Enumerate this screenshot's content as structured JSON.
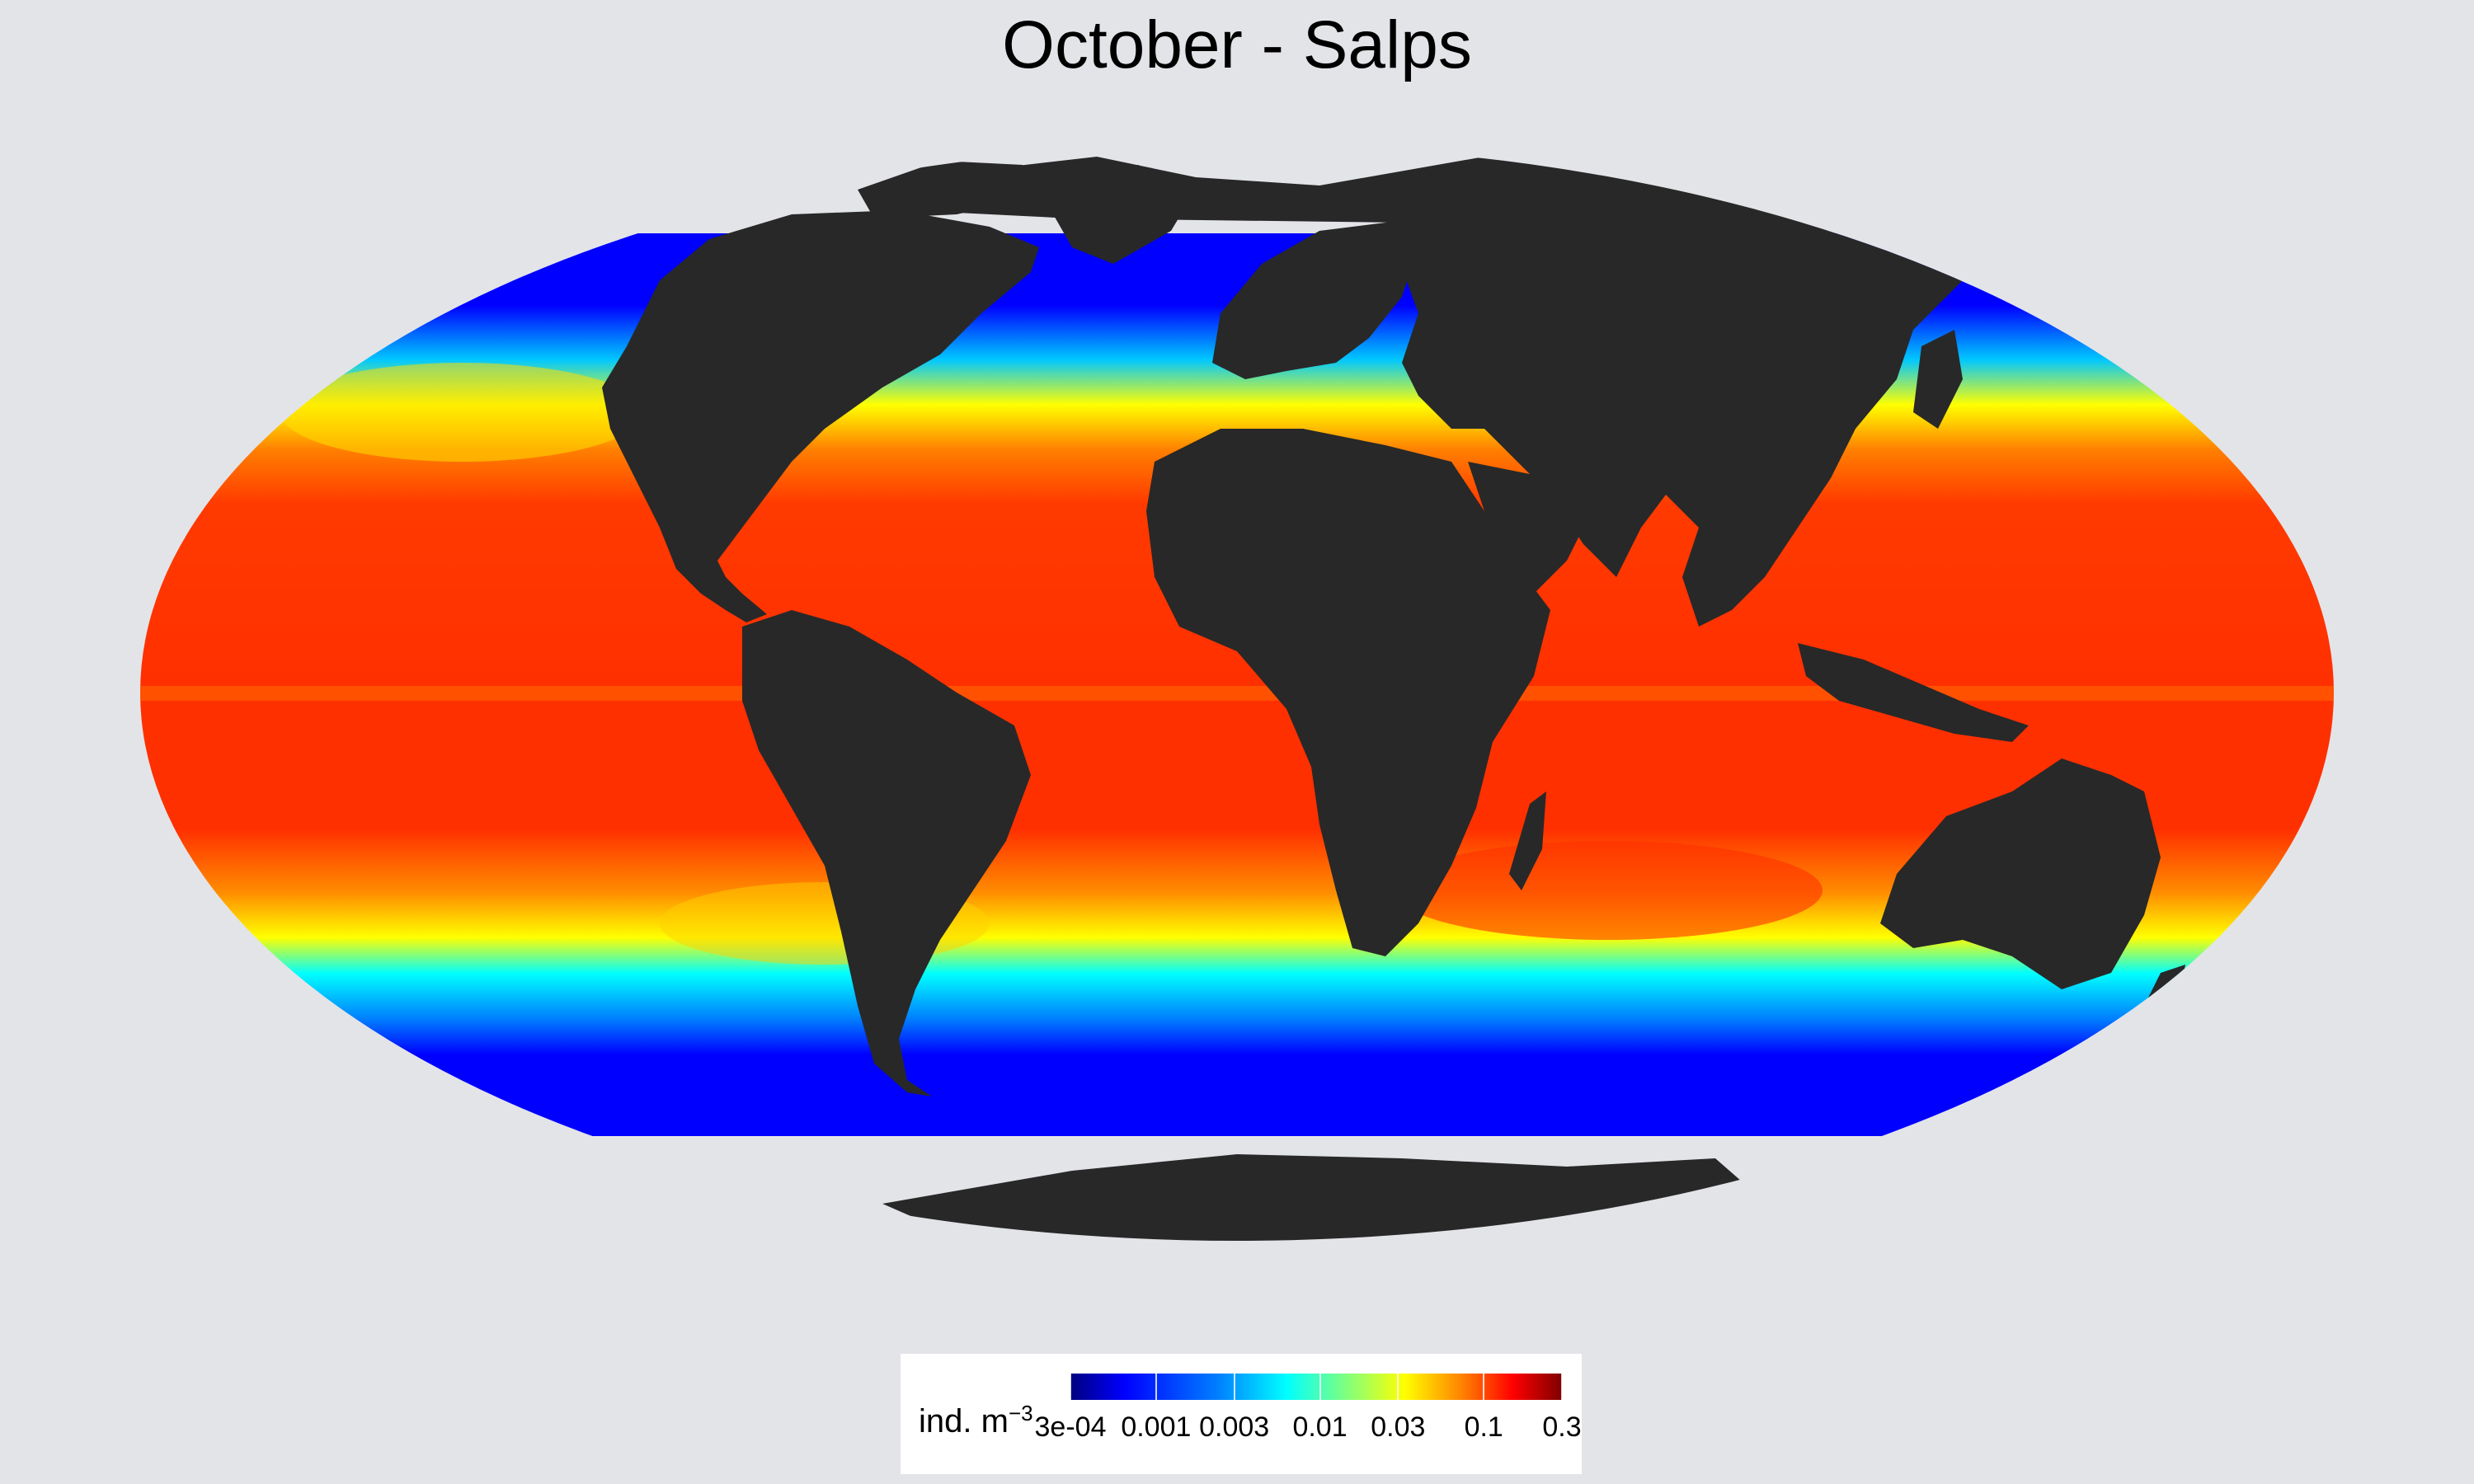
{
  "title": "October - Salps",
  "colors": {
    "background": "#e3e4e8",
    "land": "#282828",
    "antarctic_ice": "#e3e4e8",
    "colormap": [
      "#00007f",
      "#0000ff",
      "#007fff",
      "#00ffff",
      "#7fff7f",
      "#ffff00",
      "#ff7f00",
      "#ff0000",
      "#7f0000"
    ]
  },
  "map": {
    "projection": "Mollweide",
    "variable": "Salp abundance",
    "month": "October",
    "scale": "log"
  },
  "legend": {
    "title": "ind. m",
    "title_superscript": "−3",
    "range": [
      0.0003,
      0.3
    ],
    "ticks": [
      {
        "value": 0.0003,
        "label": "3e-04"
      },
      {
        "value": 0.001,
        "label": "0.001"
      },
      {
        "value": 0.003,
        "label": "0.003"
      },
      {
        "value": 0.01,
        "label": "0.01"
      },
      {
        "value": 0.03,
        "label": "0.03"
      },
      {
        "value": 0.1,
        "label": "0.1"
      },
      {
        "value": 0.3,
        "label": "0.3"
      }
    ]
  }
}
